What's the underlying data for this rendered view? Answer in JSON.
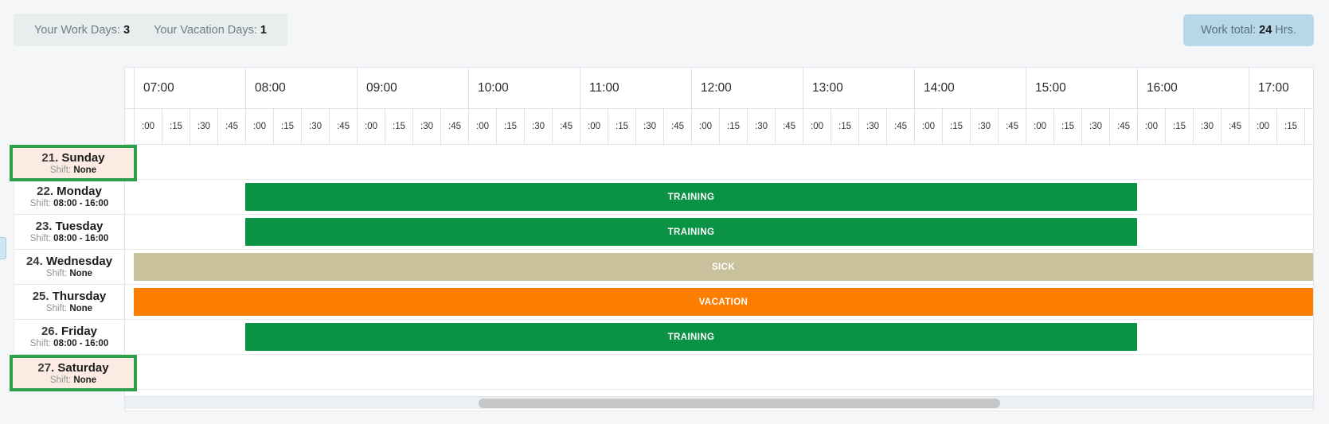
{
  "summary": {
    "work_days_label": "Your Work Days:",
    "work_days_value": "3",
    "vacation_days_label": "Your Vacation Days:",
    "vacation_days_value": "1",
    "work_total_label": "Work total:",
    "work_total_value": "24",
    "work_total_unit": "Hrs."
  },
  "timeline": {
    "hours": [
      "07:00",
      "08:00",
      "09:00",
      "10:00",
      "11:00",
      "12:00",
      "13:00",
      "14:00",
      "15:00",
      "16:00",
      "17:00"
    ],
    "quarter_labels": [
      ":00",
      ":15",
      ":30",
      ":45"
    ]
  },
  "schedule": {
    "shift_label": "Shift:",
    "days": [
      {
        "number": "21.",
        "name": "Sunday",
        "shift_value": "None",
        "highlighted": true,
        "event": null
      },
      {
        "number": "22.",
        "name": "Monday",
        "shift_value": "08:00 - 16:00",
        "highlighted": false,
        "event": {
          "label": "TRAINING",
          "type": "training",
          "start": "08:00",
          "end": "16:00"
        }
      },
      {
        "number": "23.",
        "name": "Tuesday",
        "shift_value": "08:00 - 16:00",
        "highlighted": false,
        "event": {
          "label": "TRAINING",
          "type": "training",
          "start": "08:00",
          "end": "16:00"
        }
      },
      {
        "number": "24.",
        "name": "Wednesday",
        "shift_value": "None",
        "highlighted": false,
        "event": {
          "label": "SICK",
          "type": "sick",
          "start": "07:00",
          "end": null
        }
      },
      {
        "number": "25.",
        "name": "Thursday",
        "shift_value": "None",
        "highlighted": false,
        "event": {
          "label": "VACATION",
          "type": "vacation",
          "start": "07:00",
          "end": null
        }
      },
      {
        "number": "26.",
        "name": "Friday",
        "shift_value": "08:00 - 16:00",
        "highlighted": false,
        "event": {
          "label": "TRAINING",
          "type": "training",
          "start": "08:00",
          "end": "16:00"
        }
      },
      {
        "number": "27.",
        "name": "Saturday",
        "shift_value": "None",
        "highlighted": true,
        "event": null
      }
    ]
  },
  "colors": {
    "training": "#0a9245",
    "sick": "#c9c19b",
    "vacation": "#fb7d02",
    "highlight_border": "#2da04b",
    "highlight_bg": "#fcebe2",
    "summary_badge_bg": "#e8edee",
    "work_total_badge_bg": "#b6d8e9"
  }
}
